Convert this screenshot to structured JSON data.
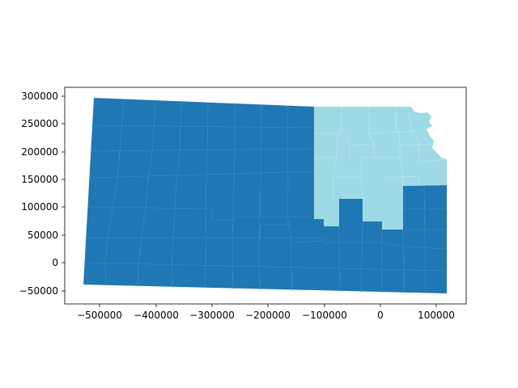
{
  "colors": {
    "background": "#ffffff",
    "region_dark": "#1f77b4",
    "region_light": "#9edae5",
    "county_border": "#5a9ccb",
    "axis": "#000000"
  },
  "map": {
    "crs_units": "projected meters",
    "regions": [
      {
        "fill": "region_dark"
      },
      {
        "fill": "region_light"
      }
    ],
    "x_ticks": [
      "−500000",
      "−400000",
      "−300000",
      "−200000",
      "−100000",
      "0",
      "100000"
    ],
    "y_ticks": [
      "300000",
      "250000",
      "200000",
      "150000",
      "100000",
      "50000",
      "0",
      "−50000"
    ],
    "xlim": [
      -560000,
      155000
    ],
    "ylim": [
      -75000,
      310000
    ]
  },
  "chart_data": {
    "type": "choropleth",
    "x_tick_values": [
      -500000,
      -400000,
      -300000,
      -200000,
      -100000,
      0,
      100000
    ],
    "y_tick_values": [
      300000,
      250000,
      200000,
      150000,
      100000,
      50000,
      0,
      -50000
    ],
    "xlim": [
      -560000,
      155000
    ],
    "ylim": [
      -75000,
      310000
    ],
    "grid": false,
    "legend": "none",
    "title": "",
    "xlabel": "",
    "ylabel": ""
  }
}
